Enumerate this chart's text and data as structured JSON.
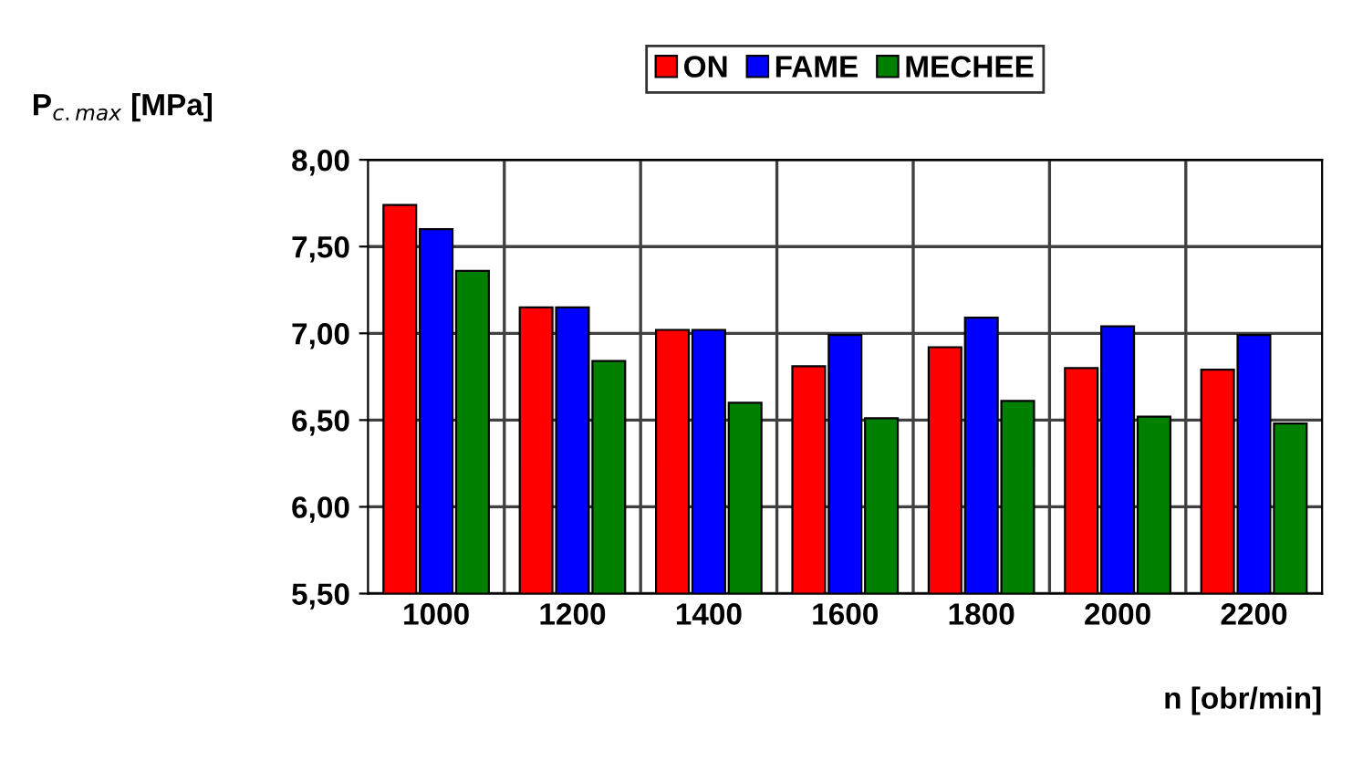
{
  "chart_data": {
    "type": "bar",
    "categories": [
      "1000",
      "1200",
      "1400",
      "1600",
      "1800",
      "2000",
      "2200"
    ],
    "series": [
      {
        "name": "ON",
        "color": "#ff0000",
        "values": [
          7.74,
          7.15,
          7.02,
          6.81,
          6.92,
          6.8,
          6.79
        ]
      },
      {
        "name": "FAME",
        "color": "#0000ff",
        "values": [
          7.6,
          7.15,
          7.02,
          6.99,
          7.09,
          7.04,
          6.99
        ]
      },
      {
        "name": "MECHEE",
        "color": "#008000",
        "values": [
          7.36,
          6.84,
          6.6,
          6.51,
          6.61,
          6.52,
          6.48
        ]
      }
    ],
    "ylim": [
      5.5,
      8.0
    ],
    "yticks": [
      {
        "value": 5.5,
        "label": "5,50"
      },
      {
        "value": 6.0,
        "label": "6,00"
      },
      {
        "value": 6.5,
        "label": "6,50"
      },
      {
        "value": 7.0,
        "label": "7,00"
      },
      {
        "value": 7.5,
        "label": "7,50"
      },
      {
        "value": 8.0,
        "label": "8,00"
      }
    ],
    "ylabel": "P$_{c.max}$ [MPa]",
    "xlabel": "n [obr/min]",
    "grid": true,
    "legend": "top"
  }
}
